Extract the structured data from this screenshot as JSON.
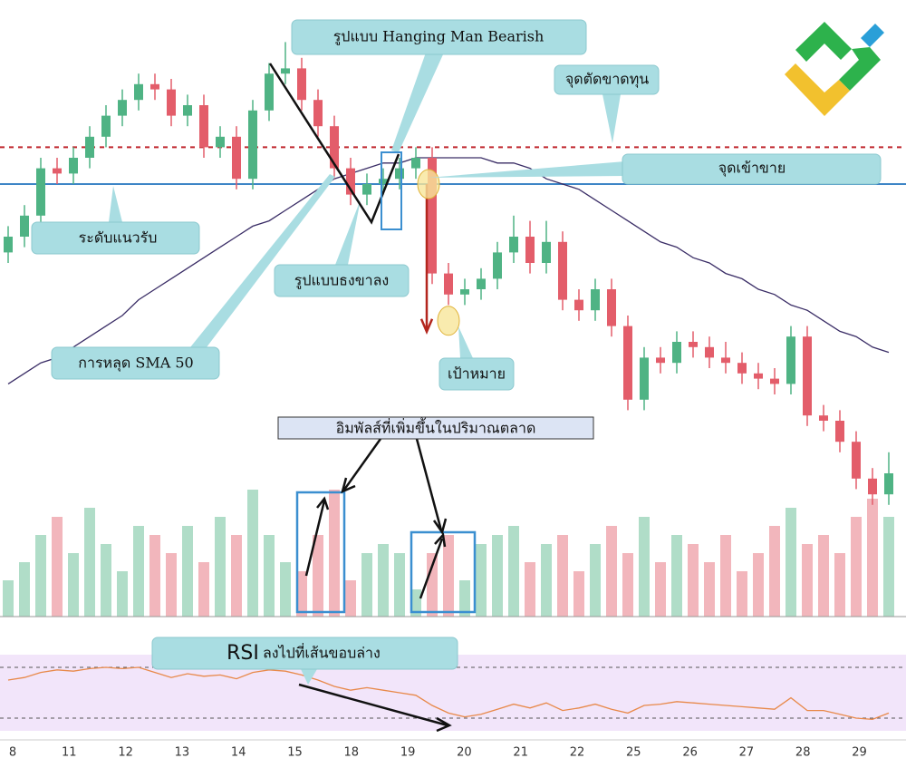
{
  "chart_data": {
    "type": "candlestick",
    "ylim": [
      0,
      100
    ],
    "open": [
      52,
      55,
      59,
      68,
      67,
      70,
      74,
      78,
      81,
      84,
      83,
      78,
      80,
      72,
      74,
      66,
      79,
      86,
      87,
      81,
      76,
      68,
      63,
      65,
      66,
      68,
      70,
      48,
      44,
      45,
      47,
      52,
      55,
      50,
      54,
      43,
      41,
      45,
      38,
      24,
      32,
      31,
      35,
      34,
      32,
      31,
      29,
      28,
      27,
      36,
      21,
      20,
      16,
      9,
      6
    ],
    "high": [
      57,
      61,
      70,
      70,
      72,
      76,
      80,
      83,
      86,
      86,
      85,
      82,
      82,
      76,
      76,
      81,
      88,
      92,
      89,
      83,
      78,
      70,
      67,
      68,
      70,
      72,
      72,
      50,
      47,
      49,
      54,
      59,
      58,
      58,
      56,
      45,
      47,
      47,
      40,
      34,
      34,
      37,
      37,
      36,
      35,
      33,
      31,
      30,
      38,
      38,
      23,
      22,
      18,
      11,
      14
    ],
    "low": [
      50,
      53,
      57,
      65,
      65,
      68,
      72,
      76,
      79,
      81,
      76,
      76,
      70,
      70,
      64,
      64,
      77,
      84,
      79,
      74,
      66,
      61,
      61,
      63,
      64,
      66,
      46,
      42,
      42,
      43,
      45,
      50,
      48,
      48,
      41,
      39,
      39,
      36,
      22,
      22,
      29,
      29,
      32,
      30,
      29,
      27,
      26,
      25,
      25,
      19,
      18,
      14,
      7,
      4,
      4
    ],
    "close": [
      55,
      59,
      68,
      67,
      70,
      74,
      78,
      81,
      84,
      83,
      78,
      80,
      72,
      74,
      66,
      79,
      86,
      87,
      81,
      76,
      68,
      63,
      65,
      66,
      68,
      70,
      48,
      44,
      45,
      47,
      52,
      55,
      50,
      54,
      43,
      41,
      45,
      38,
      24,
      32,
      31,
      35,
      34,
      32,
      31,
      29,
      28,
      27,
      36,
      21,
      20,
      16,
      9,
      6,
      10
    ],
    "sma": [
      27,
      29,
      31,
      32,
      34,
      36,
      38,
      40,
      43,
      45,
      47,
      49,
      51,
      53,
      55,
      57,
      58,
      60,
      62,
      64,
      66,
      67,
      68,
      69,
      69,
      70,
      70,
      70,
      70,
      70,
      69,
      69,
      68,
      66,
      65,
      64,
      62,
      60,
      58,
      56,
      54,
      53,
      51,
      50,
      48,
      47,
      45,
      44,
      42,
      41,
      39,
      37,
      36,
      34,
      33
    ],
    "up_color": "#4fb384",
    "down_color": "#e35d6a",
    "sma_color": "#3a2d66",
    "stop_loss": 72,
    "support": 65,
    "entry": 65,
    "target": 39,
    "volume": [
      20,
      30,
      45,
      55,
      35,
      60,
      40,
      25,
      50,
      45,
      35,
      50,
      30,
      55,
      45,
      70,
      45,
      30,
      25,
      45,
      70,
      20,
      35,
      40,
      35,
      15,
      35,
      45,
      20,
      40,
      45,
      50,
      30,
      40,
      45,
      25,
      40,
      50,
      35,
      55,
      30,
      45,
      40,
      30,
      45,
      25,
      35,
      50,
      60,
      40,
      45,
      35,
      55,
      65,
      55
    ],
    "volume_ylim": [
      0,
      100
    ],
    "rsi": [
      60,
      62,
      66,
      68,
      67,
      69,
      70,
      69,
      70,
      66,
      62,
      65,
      63,
      64,
      61,
      66,
      68,
      67,
      64,
      60,
      55,
      52,
      54,
      52,
      50,
      48,
      40,
      34,
      31,
      33,
      37,
      41,
      38,
      42,
      36,
      38,
      41,
      37,
      34,
      40,
      41,
      43,
      42,
      41,
      40,
      39,
      38,
      37,
      46,
      36,
      36,
      33,
      30,
      29,
      34
    ],
    "rsi_ylim": [
      20,
      80
    ],
    "rsi_levels": [
      70,
      30
    ],
    "rsi_color": "#e8894a",
    "x_labels": [
      "8",
      "11",
      "12",
      "13",
      "14",
      "15",
      "18",
      "19",
      "20",
      "21",
      "22",
      "25",
      "26",
      "27",
      "28",
      "29"
    ],
    "annotations": {
      "hanging_man": "รูปแบบ Hanging Man Bearish",
      "stop_loss": "จุดตัดขาดทุน",
      "entry": "จุดเข้าขาย",
      "support": "ระดับแนวรับ",
      "bear_flag": "รูปแบบธงขาลง",
      "sma_break": "การหลุด SMA 50",
      "target": "เป้าหมาย",
      "volume_impulse": "อิมพัลส์ที่เพิ่มขึ้นในปริมาณตลาด",
      "rsi_strong": "RSI",
      "rsi_text": "ลงไปที่เส้นขอบล่าง"
    }
  }
}
